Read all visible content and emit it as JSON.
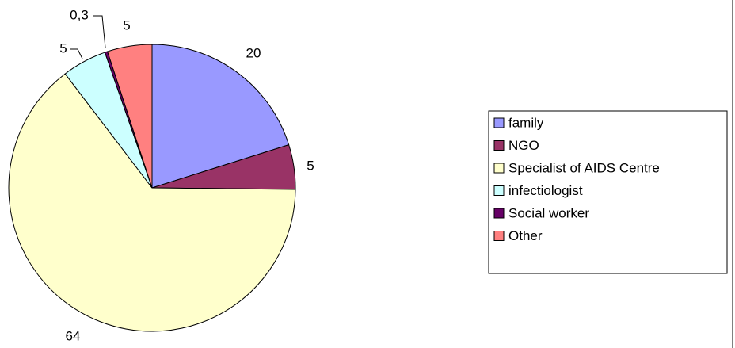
{
  "chart_data": {
    "type": "pie",
    "categories": [
      "family",
      "NGO",
      "Specialist of AIDS Centre",
      "infectiologist",
      "Social worker",
      "Other"
    ],
    "values": [
      20,
      5,
      64,
      5,
      0.3,
      5
    ],
    "value_labels": [
      "20",
      "5",
      "64",
      "5",
      "0,3",
      "5"
    ],
    "colors": [
      "#9999ff",
      "#993366",
      "#ffffcc",
      "#ccffff",
      "#660066",
      "#ff8080"
    ],
    "legend": "right"
  }
}
